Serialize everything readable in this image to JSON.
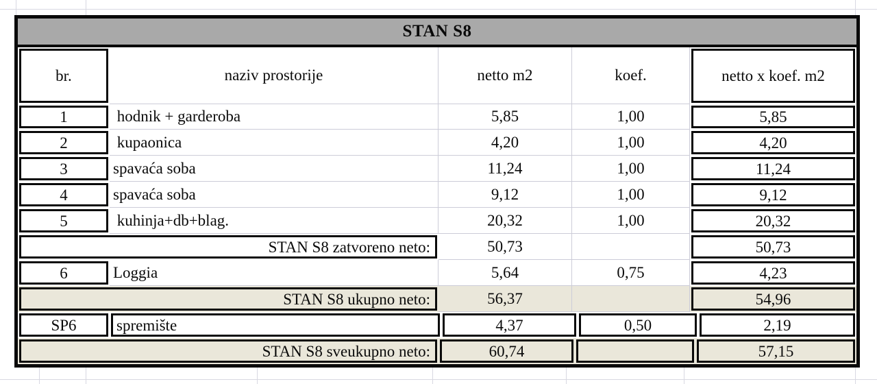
{
  "table": {
    "title": "STAN S8",
    "columns": [
      "br.",
      "naziv prostorije",
      "netto m2",
      "koef.",
      "netto x koef. m2"
    ],
    "rows": [
      {
        "kind": "data",
        "br": "1",
        "name": " hodnik + garderoba",
        "netto": "5,85",
        "koef": "1,00",
        "total": "5,85",
        "boxed": false
      },
      {
        "kind": "data",
        "br": "2",
        "name": " kupaonica",
        "netto": "4,20",
        "koef": "1,00",
        "total": "4,20",
        "boxed": false
      },
      {
        "kind": "data",
        "br": "3",
        "name": "spavaća soba",
        "netto": "11,24",
        "koef": "1,00",
        "total": "11,24",
        "boxed": false
      },
      {
        "kind": "data",
        "br": "4",
        "name": "spavaća soba",
        "netto": "9,12",
        "koef": "1,00",
        "total": "9,12",
        "boxed": false
      },
      {
        "kind": "data",
        "br": "5",
        "name": " kuhinja+db+blag.",
        "netto": "20,32",
        "koef": "1,00",
        "total": "20,32",
        "boxed": false
      },
      {
        "kind": "summary",
        "label": "STAN S8 zatvoreno neto:",
        "netto": "50,73",
        "koef": "",
        "total": "50,73",
        "shaded": false,
        "boxed": false
      },
      {
        "kind": "data",
        "br": "6",
        "name": "Loggia",
        "netto": "5,64",
        "koef": "0,75",
        "total": "4,23",
        "boxed": false
      },
      {
        "kind": "summary",
        "label": "STAN S8 ukupno neto:",
        "netto": "56,37",
        "koef": "",
        "total": "54,96",
        "shaded": true,
        "boxed": false
      },
      {
        "kind": "data",
        "br": "SP6",
        "name": "spremište",
        "netto": "4,37",
        "koef": "0,50",
        "total": "2,19",
        "boxed": true
      },
      {
        "kind": "summary",
        "label": "STAN S8 sveukupno neto:",
        "netto": "60,74",
        "koef": "",
        "total": "57,15",
        "shaded": true,
        "boxed": true
      }
    ],
    "colors": {
      "title_bg": "#a9a9a9",
      "shaded_bg": "#eae7da",
      "grid_faint": "#d8d8e2",
      "border": "#0a0a0a"
    }
  }
}
